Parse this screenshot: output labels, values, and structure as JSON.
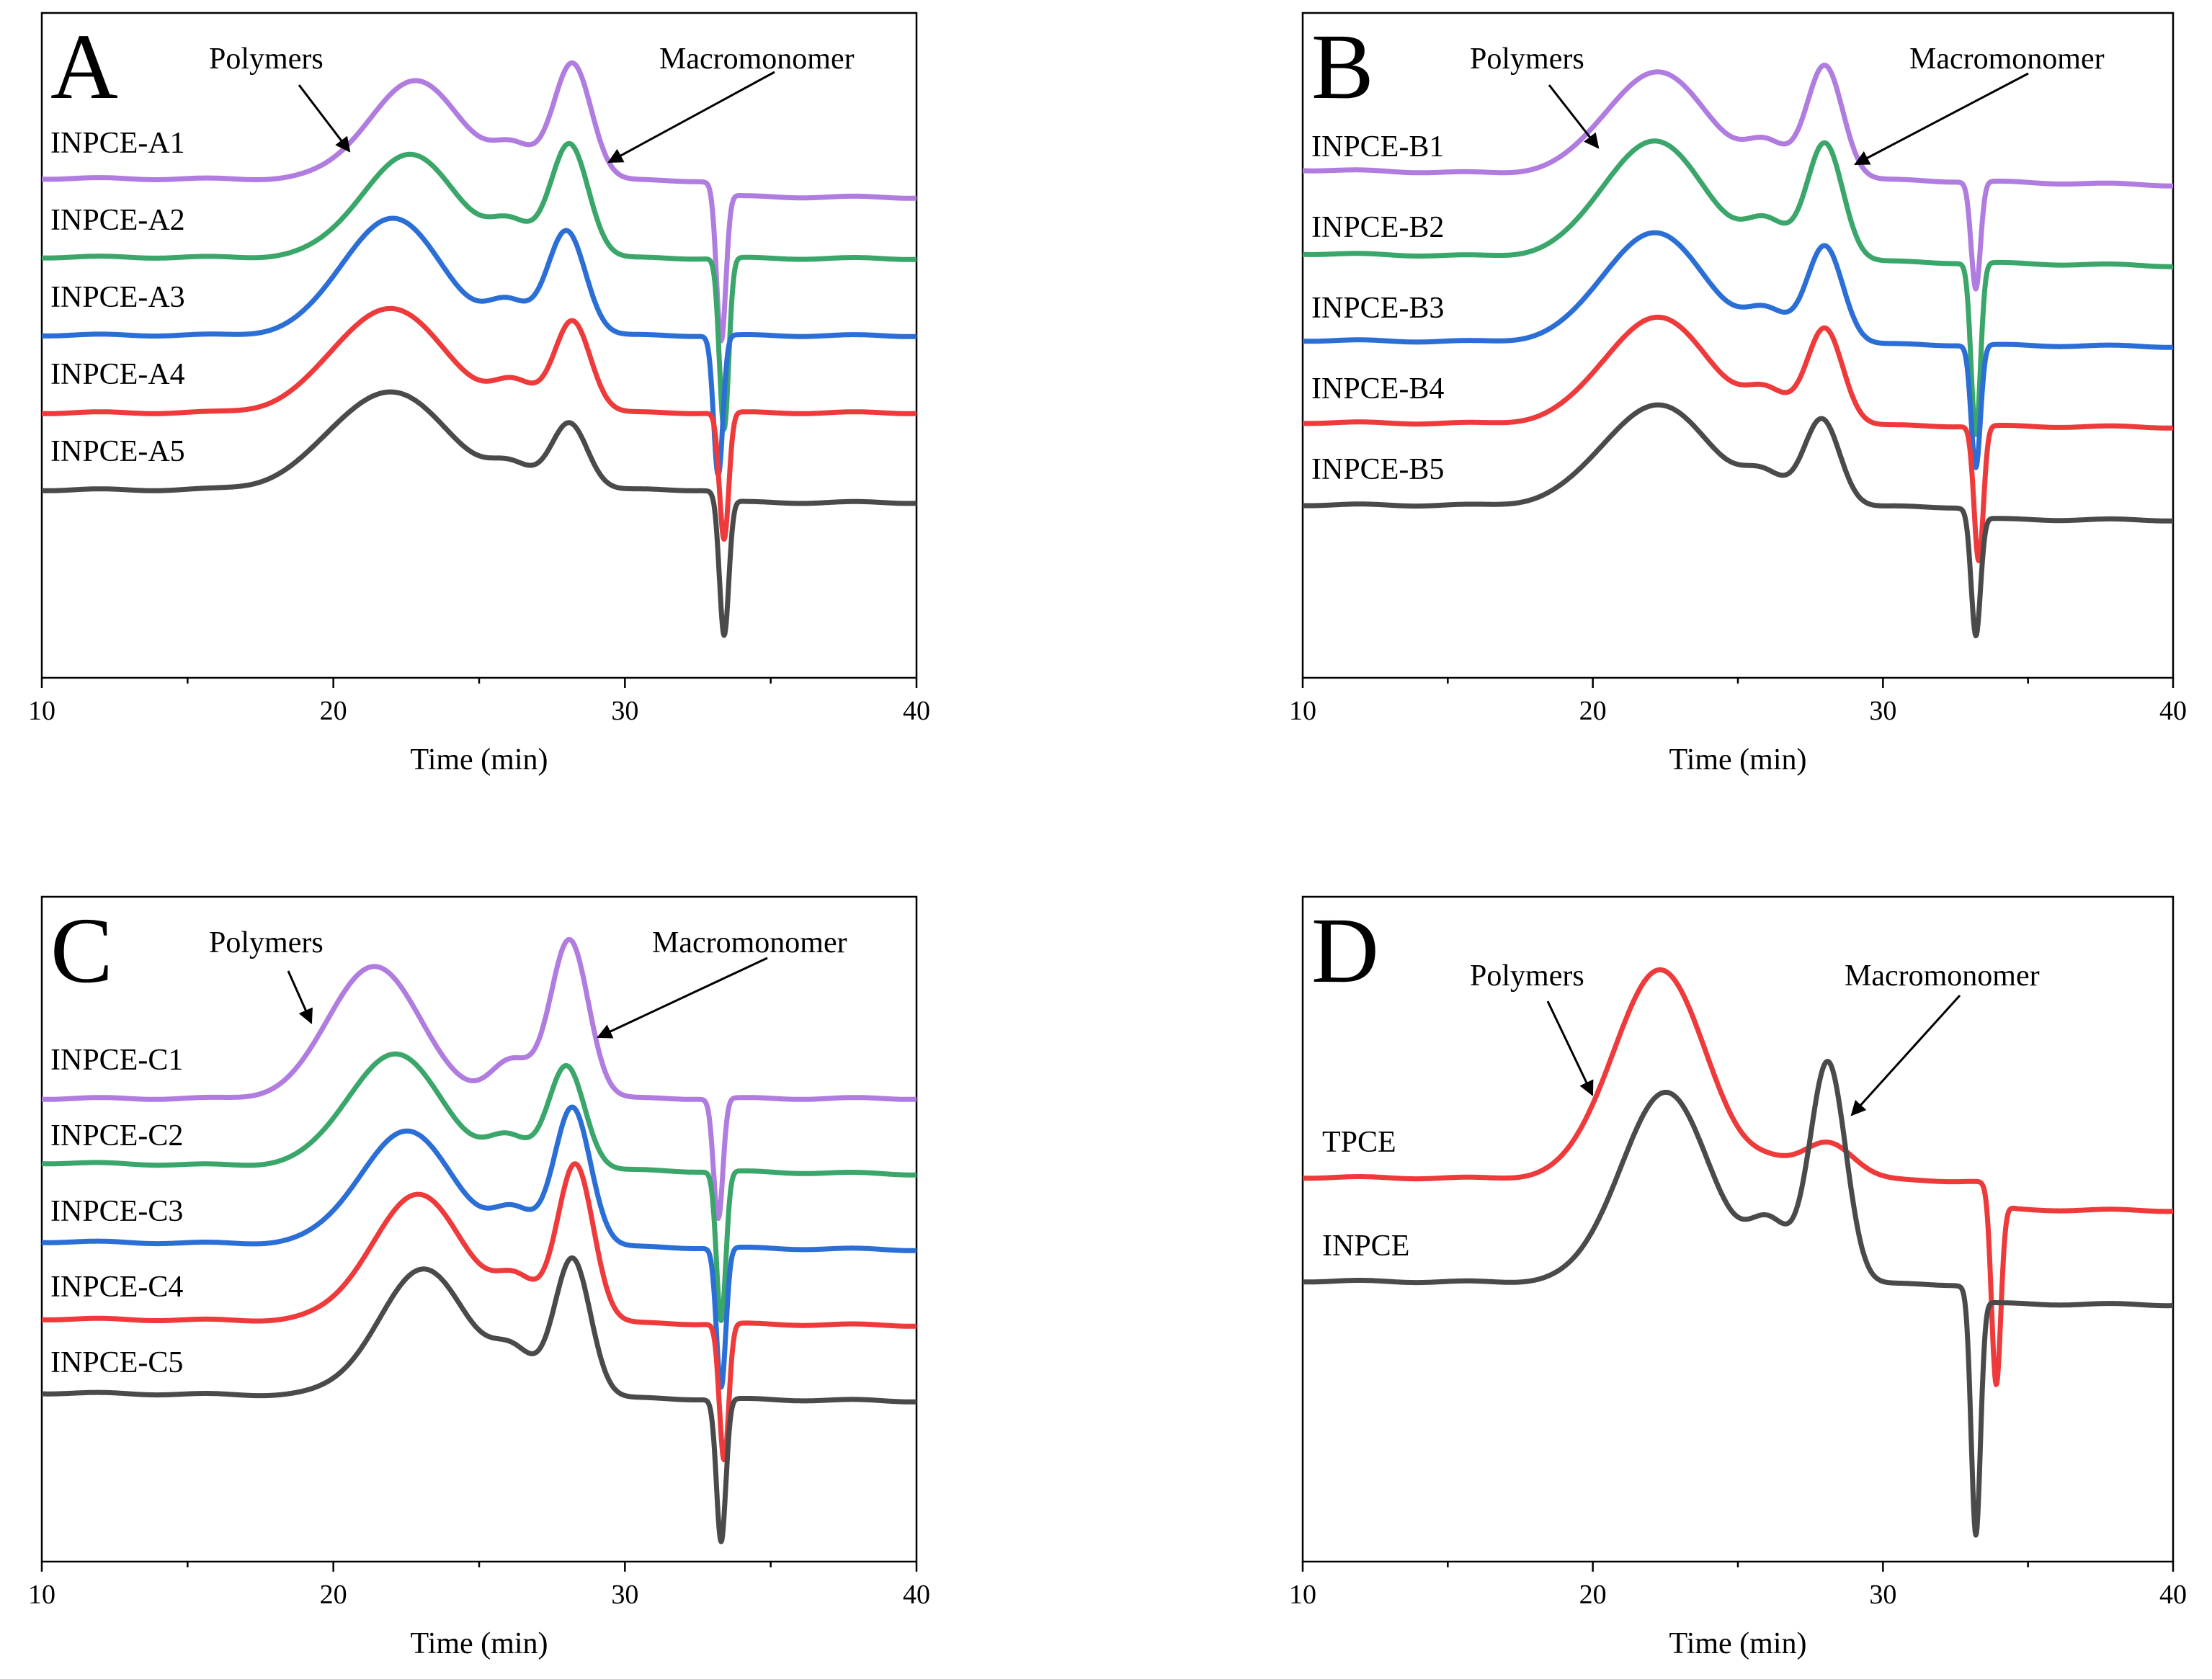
{
  "colors": {
    "purple": "#b07ce0",
    "green": "#3aa66a",
    "blue": "#2b6fd6",
    "red": "#ee3a3a",
    "black": "#4a4a4a"
  },
  "chart_data": [
    {
      "type": "line",
      "panel": "A",
      "xlabel": "Time (min)",
      "ylabel": "",
      "xlim": [
        10,
        40
      ],
      "xticks": [
        "10",
        "20",
        "30",
        "40"
      ],
      "annotations": [
        {
          "text": "Polymers",
          "x": 21.5
        },
        {
          "text": "Macromonomer",
          "x": 29.3
        }
      ],
      "series": [
        {
          "name": "INPCE-A1",
          "color": "purple",
          "offset": 4,
          "p1": 22.8,
          "h1": 1.55,
          "w1": 1.6,
          "p2": 28.2,
          "h2": 1.85,
          "w2": 0.65,
          "dip": 33.3,
          "dh": 2.4,
          "step": -0.25,
          "slope": 0.1
        },
        {
          "name": "INPCE-A2",
          "color": "green",
          "offset": 3,
          "p1": 22.6,
          "h1": 1.62,
          "w1": 1.65,
          "p2": 28.1,
          "h2": 1.8,
          "w2": 0.65,
          "dip": 33.4,
          "dh": 2.7,
          "step": 0.0,
          "slope": 0.05
        },
        {
          "name": "INPCE-A3",
          "color": "blue",
          "offset": 2,
          "p1": 22.0,
          "h1": 1.85,
          "w1": 1.7,
          "p2": 28.0,
          "h2": 1.65,
          "w2": 0.65,
          "dip": 33.2,
          "dh": 2.2,
          "step": 0.0,
          "slope": 0.02
        },
        {
          "name": "INPCE-A4",
          "color": "red",
          "offset": 1,
          "p1": 21.9,
          "h1": 1.65,
          "w1": 1.9,
          "p2": 28.2,
          "h2": 1.45,
          "w2": 0.62,
          "dip": 33.4,
          "dh": 2.0,
          "step": 0.0,
          "slope": 0.0
        },
        {
          "name": "INPCE-A5",
          "color": "black",
          "offset": 0,
          "p1": 21.9,
          "h1": 1.55,
          "w1": 2.0,
          "p2": 28.1,
          "h2": 1.05,
          "w2": 0.62,
          "dip": 33.4,
          "dh": 2.2,
          "step": -0.2,
          "slope": 0.0
        }
      ]
    },
    {
      "type": "line",
      "panel": "B",
      "xlabel": "Time (min)",
      "ylabel": "",
      "xlim": [
        10,
        40
      ],
      "xticks": [
        "10",
        "20",
        "30",
        "40"
      ],
      "annotations": [
        {
          "text": "Polymers",
          "x": 21.5
        },
        {
          "text": "Macromonomer",
          "x": 28.8
        }
      ],
      "series": [
        {
          "name": "INPCE-B1",
          "color": "purple",
          "offset": 4,
          "p1": 22.2,
          "h1": 1.7,
          "w1": 1.75,
          "p2": 28.0,
          "h2": 1.85,
          "w2": 0.62,
          "dip": 33.2,
          "dh": 1.75,
          "step": 0.0,
          "slope": 0.5
        },
        {
          "name": "INPCE-B2",
          "color": "green",
          "offset": 3,
          "p1": 22.1,
          "h1": 1.92,
          "w1": 1.75,
          "p2": 28.0,
          "h2": 1.92,
          "w2": 0.62,
          "dip": 33.2,
          "dh": 2.8,
          "step": 0.0,
          "slope": 0.4
        },
        {
          "name": "INPCE-B3",
          "color": "blue",
          "offset": 2,
          "p1": 22.1,
          "h1": 1.8,
          "w1": 1.75,
          "p2": 28.0,
          "h2": 1.6,
          "w2": 0.62,
          "dip": 33.2,
          "dh": 2.0,
          "step": 0.0,
          "slope": 0.2
        },
        {
          "name": "INPCE-B4",
          "color": "red",
          "offset": 1,
          "p1": 22.2,
          "h1": 1.75,
          "w1": 1.8,
          "p2": 28.0,
          "h2": 1.58,
          "w2": 0.62,
          "dip": 33.3,
          "dh": 2.2,
          "step": 0.0,
          "slope": 0.15
        },
        {
          "name": "INPCE-B5",
          "color": "black",
          "offset": 0,
          "p1": 22.2,
          "h1": 1.65,
          "w1": 1.85,
          "p2": 27.9,
          "h2": 1.42,
          "w2": 0.62,
          "dip": 33.2,
          "dh": 2.0,
          "step": -0.2,
          "slope": 0.1
        }
      ]
    },
    {
      "type": "line",
      "panel": "C",
      "xlabel": "Time (min)",
      "ylabel": "",
      "xlim": [
        10,
        40
      ],
      "xticks": [
        "10",
        "20",
        "30",
        "40"
      ],
      "annotations": [
        {
          "text": "Polymers",
          "x": 19.5
        },
        {
          "text": "Macromonomer",
          "x": 29.5
        }
      ],
      "series": [
        {
          "name": "INPCE-C1",
          "color": "purple",
          "offset": 4,
          "p1": 21.4,
          "h1": 2.05,
          "w1": 1.55,
          "p2": 28.1,
          "h2": 2.45,
          "w2": 0.65,
          "dip": 33.2,
          "dh": 1.85,
          "step": 0.0,
          "slope": 0.0
        },
        {
          "name": "INPCE-C2",
          "color": "green",
          "offset": 3,
          "p1": 22.1,
          "h1": 1.75,
          "w1": 1.6,
          "p2": 28.0,
          "h2": 1.6,
          "w2": 0.62,
          "dip": 33.3,
          "dh": 2.3,
          "step": 0.0,
          "slope": 0.35
        },
        {
          "name": "INPCE-C3",
          "color": "blue",
          "offset": 2,
          "p1": 22.5,
          "h1": 1.75,
          "w1": 1.6,
          "p2": 28.2,
          "h2": 2.15,
          "w2": 0.62,
          "dip": 33.3,
          "dh": 2.15,
          "step": 0.0,
          "slope": 0.25
        },
        {
          "name": "INPCE-C4",
          "color": "red",
          "offset": 1,
          "p1": 22.9,
          "h1": 1.95,
          "w1": 1.6,
          "p2": 28.3,
          "h2": 2.45,
          "w2": 0.62,
          "dip": 33.4,
          "dh": 2.1,
          "step": 0.0,
          "slope": 0.2
        },
        {
          "name": "INPCE-C5",
          "color": "black",
          "offset": 0,
          "p1": 23.1,
          "h1": 1.95,
          "w1": 1.55,
          "p2": 28.2,
          "h2": 2.15,
          "w2": 0.62,
          "dip": 33.3,
          "dh": 2.2,
          "step": 0.0,
          "slope": 0.25
        }
      ]
    },
    {
      "type": "line",
      "panel": "D",
      "xlabel": "Time (min)",
      "ylabel": "",
      "xlim": [
        10,
        40
      ],
      "xticks": [
        "10",
        "20",
        "30",
        "40"
      ],
      "annotations": [
        {
          "text": "Polymers",
          "x": 19.7
        },
        {
          "text": "Macromonomer",
          "x": 28.9
        }
      ],
      "series": [
        {
          "name": "TPCE",
          "color": "red",
          "offset": 1.6,
          "p1": 22.3,
          "h1": 3.3,
          "w1": 1.6,
          "p2": 28.1,
          "h2": 0.6,
          "w2": 0.9,
          "dip": 33.9,
          "dh": 3.0,
          "step": -0.45,
          "slope": 0.15
        },
        {
          "name": "INPCE",
          "color": "black",
          "offset": 0,
          "p1": 22.5,
          "h1": 3.0,
          "w1": 1.55,
          "p2": 28.1,
          "h2": 3.5,
          "w2": 0.62,
          "dip": 33.2,
          "dh": 3.8,
          "step": -0.3,
          "slope": 0.15
        }
      ]
    }
  ]
}
